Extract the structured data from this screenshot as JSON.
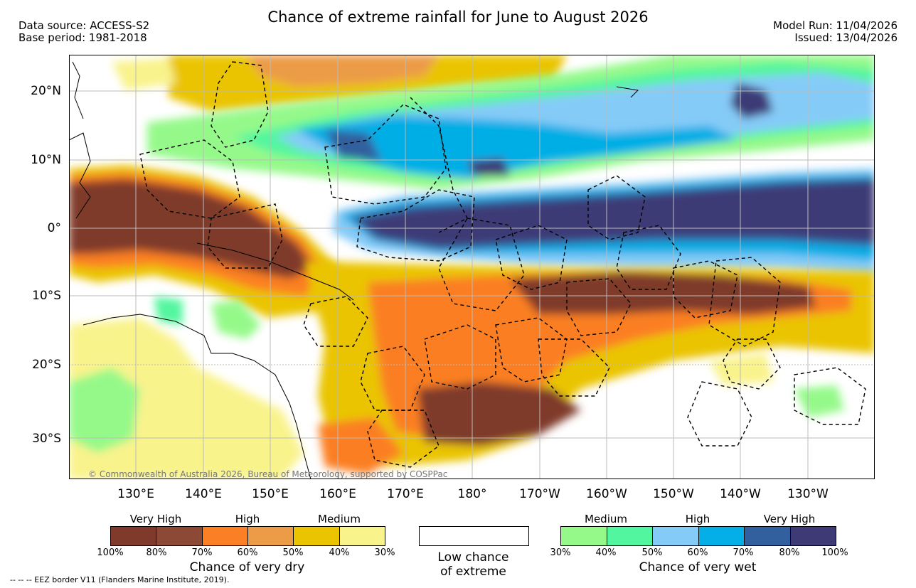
{
  "title": "Chance of extreme rainfall for June to August 2026",
  "meta_left": {
    "data_source": "Data source: ACCESS-S2",
    "base_period": "Base period: 1981-2018"
  },
  "meta_right": {
    "model_run": "Model Run: 11/04/2026",
    "issued": "Issued: 13/04/2026"
  },
  "map": {
    "lat_labels": [
      "20°N",
      "10°N",
      "0°",
      "10°S",
      "20°S",
      "30°S"
    ],
    "lon_labels": [
      "130°E",
      "140°E",
      "150°E",
      "160°E",
      "170°E",
      "180°",
      "170°W",
      "160°W",
      "150°W",
      "140°W",
      "130°W"
    ],
    "copyright": "© Commonwealth of Australia 2026, Bureau of Meteorology, supported by COSPPac"
  },
  "legend": {
    "dry": {
      "categories": [
        "Very High",
        "High",
        "Medium"
      ],
      "ticks": [
        "100%",
        "80%",
        "70%",
        "60%",
        "50%",
        "40%",
        "30%"
      ],
      "colors": [
        "#7f3a2c",
        "#8c4a36",
        "#fb7f24",
        "#ec9b47",
        "#eac400",
        "#f9f38c"
      ],
      "title": "Chance of very dry"
    },
    "low": {
      "line1": "Low chance",
      "line2": "of extreme"
    },
    "wet": {
      "categories": [
        "Medium",
        "High",
        "Very High"
      ],
      "ticks": [
        "30%",
        "40%",
        "50%",
        "60%",
        "70%",
        "80%",
        "100%"
      ],
      "colors": [
        "#95f98a",
        "#52f69f",
        "#85cbf8",
        "#04aee6",
        "#325f9d",
        "#3d3a76"
      ],
      "title": "Chance of very wet"
    },
    "eez_note": "--  --  -- EEZ border V11 (Flanders Marine Institute, 2019)."
  },
  "colors": {
    "very_dry": "#7f3a2c",
    "dry_high": "#fb7f24",
    "dry_medium": "#eac400",
    "dry_low": "#f9f38c",
    "wet_medium": "#95f98a",
    "wet_high": "#85cbf8",
    "wet_very_high": "#3d3a76"
  }
}
